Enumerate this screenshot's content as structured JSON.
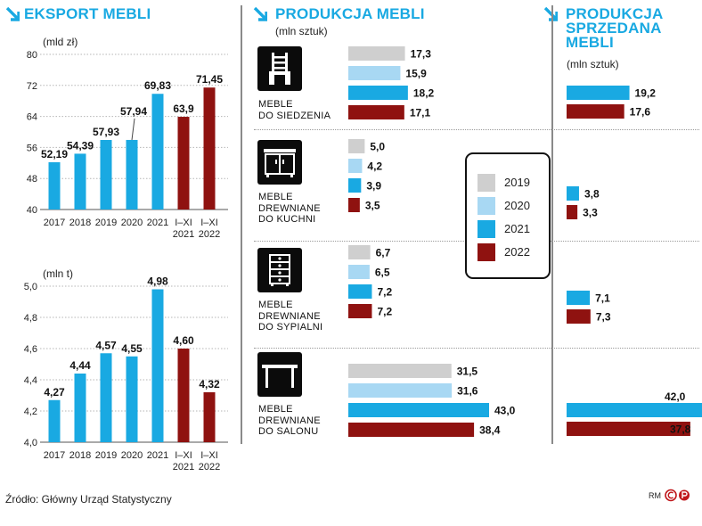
{
  "colors": {
    "accent": "#19a9e2",
    "y2019": "#cfcfcf",
    "y2020": "#a8d8f3",
    "y2021": "#19a9e2",
    "y2022": "#8f1210"
  },
  "titles": {
    "eksport": "EKSPORT MEBLI",
    "produkcja": "PRODUKCJA MEBLI",
    "sprzedana": [
      "PRODUKCJA",
      "SPRZEDANA",
      "MEBLI"
    ]
  },
  "units": {
    "mld": "(mld zł)",
    "mlnt": "(mln t)",
    "szt_mid": "(mln sztuk)",
    "szt_right": "(mln sztuk)"
  },
  "legend": [
    {
      "label": "2019",
      "color": "#cfcfcf"
    },
    {
      "label": "2020",
      "color": "#a8d8f3"
    },
    {
      "label": "2021",
      "color": "#19a9e2"
    },
    {
      "label": "2022",
      "color": "#8f1210"
    }
  ],
  "source": "Źródło: Główny Urząd Statystyczny",
  "credit": "RM",
  "chart_data": [
    {
      "type": "bar",
      "title": "EKSPORT MEBLI",
      "ylabel": "(mld zł)",
      "categories": [
        [
          "2017"
        ],
        [
          "2018"
        ],
        [
          "2019"
        ],
        [
          "2020"
        ],
        [
          "2021"
        ],
        [
          "I–XI",
          "2021"
        ],
        [
          "I–XI",
          "2022"
        ]
      ],
      "values": [
        52.19,
        54.39,
        57.93,
        57.94,
        69.83,
        63.9,
        71.45
      ],
      "value_labels": [
        "52,19",
        "54,39",
        "57,93",
        "57,94",
        "69,83",
        "63,9",
        "71,45"
      ],
      "colors": [
        "#19a9e2",
        "#19a9e2",
        "#19a9e2",
        "#19a9e2",
        "#19a9e2",
        "#8f1210",
        "#8f1210"
      ],
      "ylim": [
        40,
        80
      ],
      "yticks": [
        40,
        48,
        56,
        64,
        72,
        80
      ],
      "ytick_labels": [
        "40",
        "48",
        "56",
        "64",
        "72",
        "80"
      ],
      "grid": true
    },
    {
      "type": "bar",
      "ylabel": "(mln t)",
      "categories": [
        [
          "2017"
        ],
        [
          "2018"
        ],
        [
          "2019"
        ],
        [
          "2020"
        ],
        [
          "2021"
        ],
        [
          "I–XI",
          "2021"
        ],
        [
          "I–XI",
          "2022"
        ]
      ],
      "values": [
        4.27,
        4.44,
        4.57,
        4.55,
        4.98,
        4.6,
        4.32
      ],
      "value_labels": [
        "4,27",
        "4,44",
        "4,57",
        "4,55",
        "4,98",
        "4,60",
        "4,32"
      ],
      "colors": [
        "#19a9e2",
        "#19a9e2",
        "#19a9e2",
        "#19a9e2",
        "#19a9e2",
        "#8f1210",
        "#8f1210"
      ],
      "ylim": [
        4.0,
        5.0
      ],
      "yticks": [
        4.0,
        4.2,
        4.4,
        4.6,
        4.8,
        5.0
      ],
      "ytick_labels": [
        "4,0",
        "4,2",
        "4,4",
        "4,6",
        "4,8",
        "5,0"
      ],
      "grid": true
    },
    {
      "type": "bar",
      "orientation": "horizontal",
      "title": "PRODUKCJA MEBLI",
      "unit": "(mln sztuk)",
      "series_names": [
        "2019",
        "2020",
        "2021",
        "2022"
      ],
      "groups": [
        {
          "label": [
            "MEBLE",
            "DO SIEDZENIA"
          ],
          "icon": "chair-icon",
          "values": [
            17.3,
            15.9,
            18.2,
            17.1
          ],
          "value_labels": [
            "17,3",
            "15,9",
            "18,2",
            "17,1"
          ]
        },
        {
          "label": [
            "MEBLE",
            "DREWNIANE",
            "DO KUCHNI"
          ],
          "icon": "kitchen-cabinet-icon",
          "values": [
            5.0,
            4.2,
            3.9,
            3.5
          ],
          "value_labels": [
            "5,0",
            "4,2",
            "3,9",
            "3,5"
          ]
        },
        {
          "label": [
            "MEBLE",
            "DREWNIANE",
            "DO SYPIALNI"
          ],
          "icon": "dresser-icon",
          "values": [
            6.7,
            6.5,
            7.2,
            7.2
          ],
          "value_labels": [
            "6,7",
            "6,5",
            "7,2",
            "7,2"
          ]
        },
        {
          "label": [
            "MEBLE",
            "DREWNIANE",
            "DO SALONU"
          ],
          "icon": "table-icon",
          "values": [
            31.5,
            31.6,
            43.0,
            38.4
          ],
          "value_labels": [
            "31,5",
            "31,6",
            "43,0",
            "38,4"
          ]
        }
      ]
    },
    {
      "type": "bar",
      "orientation": "horizontal",
      "title": "PRODUKCJA SPRZEDANA MEBLI",
      "unit": "(mln sztuk)",
      "series_names": [
        "2021",
        "2022"
      ],
      "groups": [
        {
          "values": [
            19.2,
            17.6
          ],
          "value_labels": [
            "19,2",
            "17,6"
          ]
        },
        {
          "values": [
            3.8,
            3.3
          ],
          "value_labels": [
            "3,8",
            "3,3"
          ]
        },
        {
          "values": [
            7.1,
            7.3
          ],
          "value_labels": [
            "7,1",
            "7,3"
          ]
        },
        {
          "values": [
            42.0,
            37.8
          ],
          "value_labels": [
            "42,0",
            "37,8"
          ]
        }
      ]
    }
  ]
}
